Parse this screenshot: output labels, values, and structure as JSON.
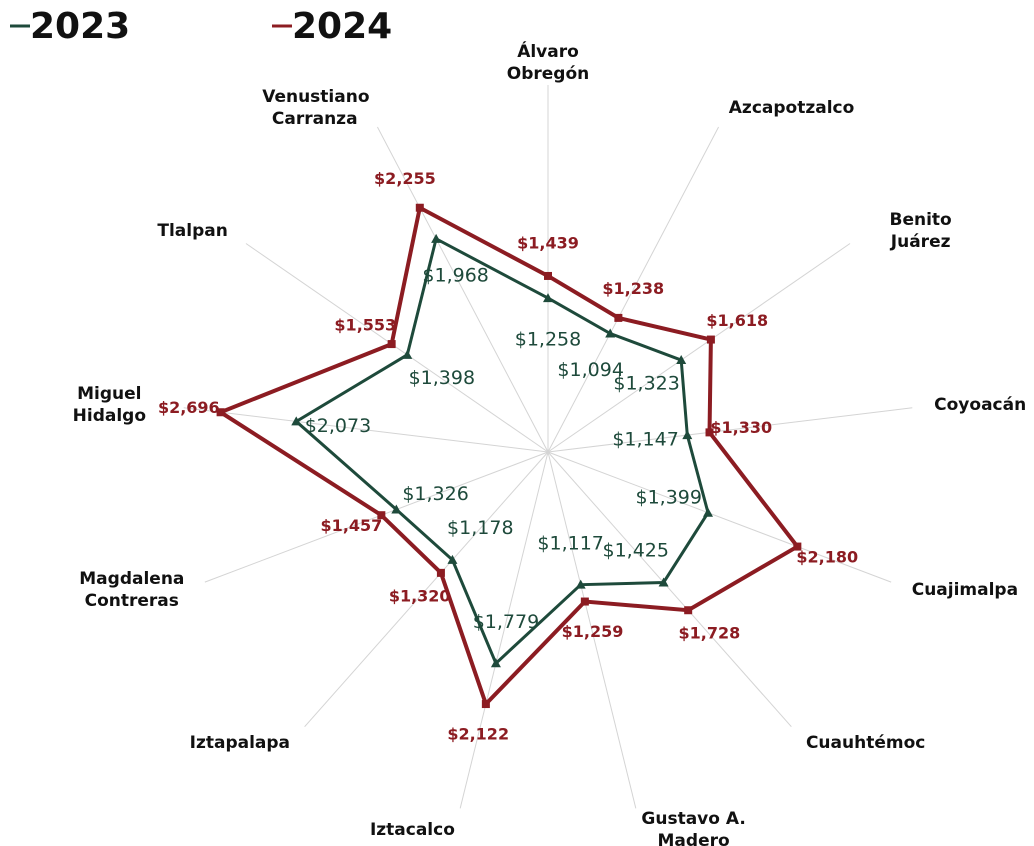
{
  "chart_data": {
    "type": "radar",
    "categories": [
      "Álvaro Obregón",
      "Azcapotzalco",
      "Benito Juárez",
      "Coyoacán",
      "Cuajimalpa",
      "Cuauhtémoc",
      "Gustavo A. Madero",
      "Iztacalco",
      "Iztapalapa",
      "Magdalena Contreras",
      "Miguel Hidalgo",
      "Tlalpan",
      "Venustiano Carranza"
    ],
    "series": [
      {
        "name": "2023",
        "color": "#1e4a3b",
        "values": [
          1258,
          1094,
          1323,
          1147,
          1399,
          1425,
          1117,
          1779,
          1178,
          1326,
          2073,
          1398,
          1968
        ],
        "value_labels": [
          "$1,258",
          "$1,094",
          "$1,323",
          "$1,147",
          "$1,399",
          "$1,425",
          "$1,117",
          "$1,779",
          "$1,178",
          "$1,326",
          "$2,073",
          "$1,398",
          "$1,968"
        ]
      },
      {
        "name": "2024",
        "color": "#8c1c22",
        "values": [
          1439,
          1238,
          1618,
          1330,
          2180,
          1728,
          1259,
          2122,
          1320,
          1457,
          2696,
          1553,
          2255
        ],
        "value_labels": [
          "$1,439",
          "$1,238",
          "$1,618",
          "$1,330",
          "$2,180",
          "$1,728",
          "$1,259",
          "$2,122",
          "$1,320",
          "$1,457",
          "$2,696",
          "$1,553",
          "$2,255"
        ]
      }
    ],
    "ylim": [
      0,
      3000
    ]
  }
}
